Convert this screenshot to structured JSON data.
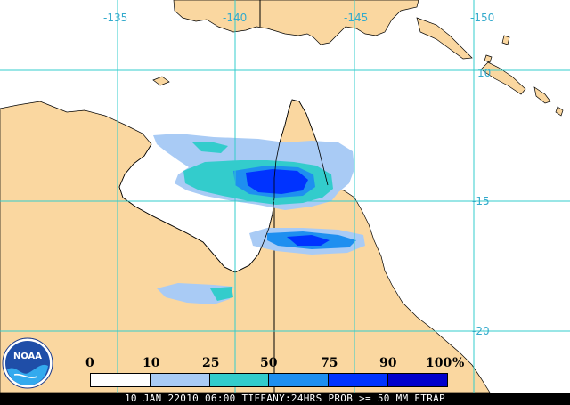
{
  "longitude_labels": [
    "-135",
    "-140",
    "-145",
    "-150"
  ],
  "latitude_labels": [
    "10",
    "-15",
    "-20"
  ],
  "legend": {
    "ticks": [
      "0",
      "10",
      "25",
      "50",
      "75",
      "90",
      "100",
      "%"
    ],
    "colors": [
      "#ffffff",
      "#a9cbf5",
      "#33cccc",
      "#1e8ff0",
      "#0033ff",
      "#0000cc",
      "#001080"
    ]
  },
  "caption": "10 JAN 22010 06:00 TIFFANY:24HRS PROB >= 50 MM ETRAP",
  "logo": {
    "text": "NOAA",
    "icon": "noaa-logo-icon"
  },
  "colors": {
    "land": "#fad7a0",
    "ocean": "#ffffff",
    "grid": "#33cccc",
    "border": "#000000"
  }
}
